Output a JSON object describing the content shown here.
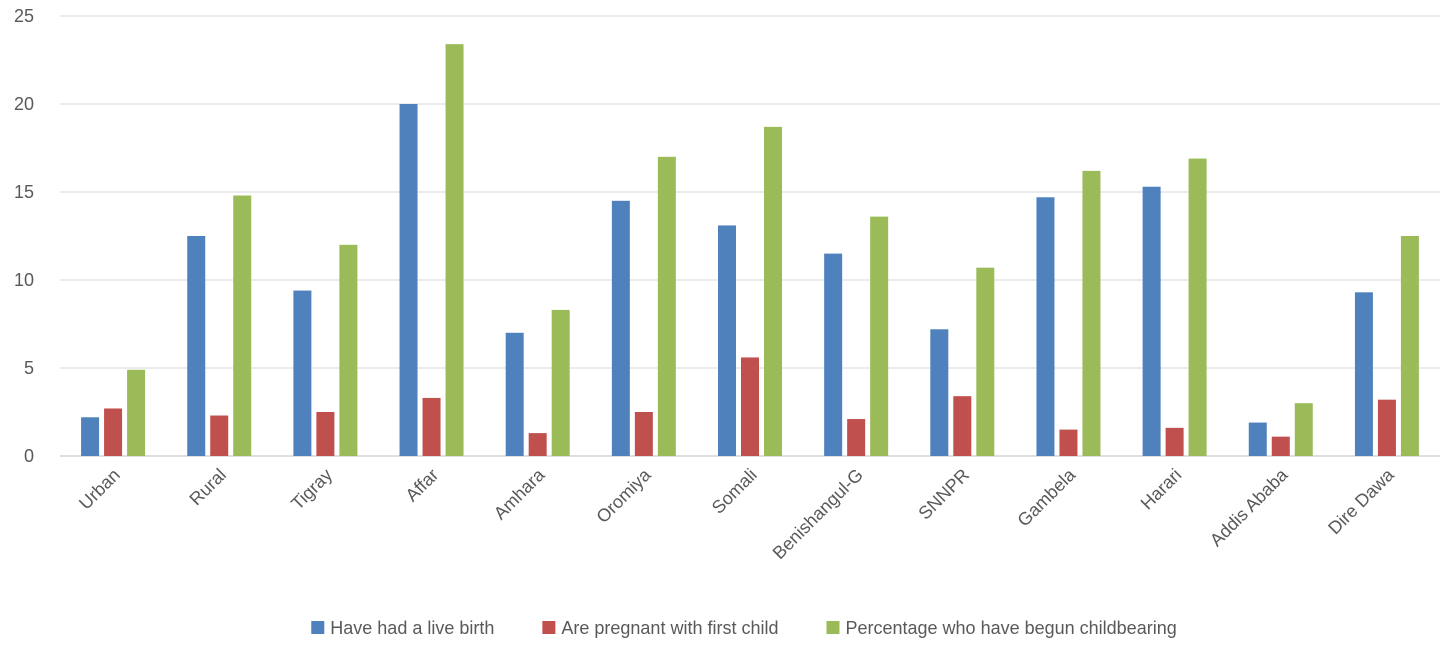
{
  "chart_data": {
    "type": "bar",
    "title": "",
    "xlabel": "",
    "ylabel": "",
    "ylim": [
      0,
      25
    ],
    "yticks": [
      0,
      5,
      10,
      15,
      20,
      25
    ],
    "grid": true,
    "legend_position": "bottom",
    "categories": [
      "Urban",
      "Rural",
      "Tigray",
      "Affar",
      "Amhara",
      "Oromiya",
      "Somali",
      "Benishangul-G",
      "SNNPR",
      "Gambela",
      "Harari",
      "Addis Ababa",
      "Dire Dawa"
    ],
    "series": [
      {
        "name": "Have had a live birth",
        "color": "#4f81bd",
        "values": [
          2.2,
          12.5,
          9.4,
          20.0,
          7.0,
          14.5,
          13.1,
          11.5,
          7.2,
          14.7,
          15.3,
          1.9,
          9.3
        ]
      },
      {
        "name": "Are pregnant with first child",
        "color": "#c0504d",
        "values": [
          2.7,
          2.3,
          2.5,
          3.3,
          1.3,
          2.5,
          5.6,
          2.1,
          3.4,
          1.5,
          1.6,
          1.1,
          3.2
        ]
      },
      {
        "name": "Percentage who have begun childbearing",
        "color": "#9bbb59",
        "values": [
          4.9,
          14.8,
          12.0,
          23.4,
          8.3,
          17.0,
          18.7,
          13.6,
          10.7,
          16.2,
          16.9,
          3.0,
          12.5
        ]
      }
    ]
  }
}
